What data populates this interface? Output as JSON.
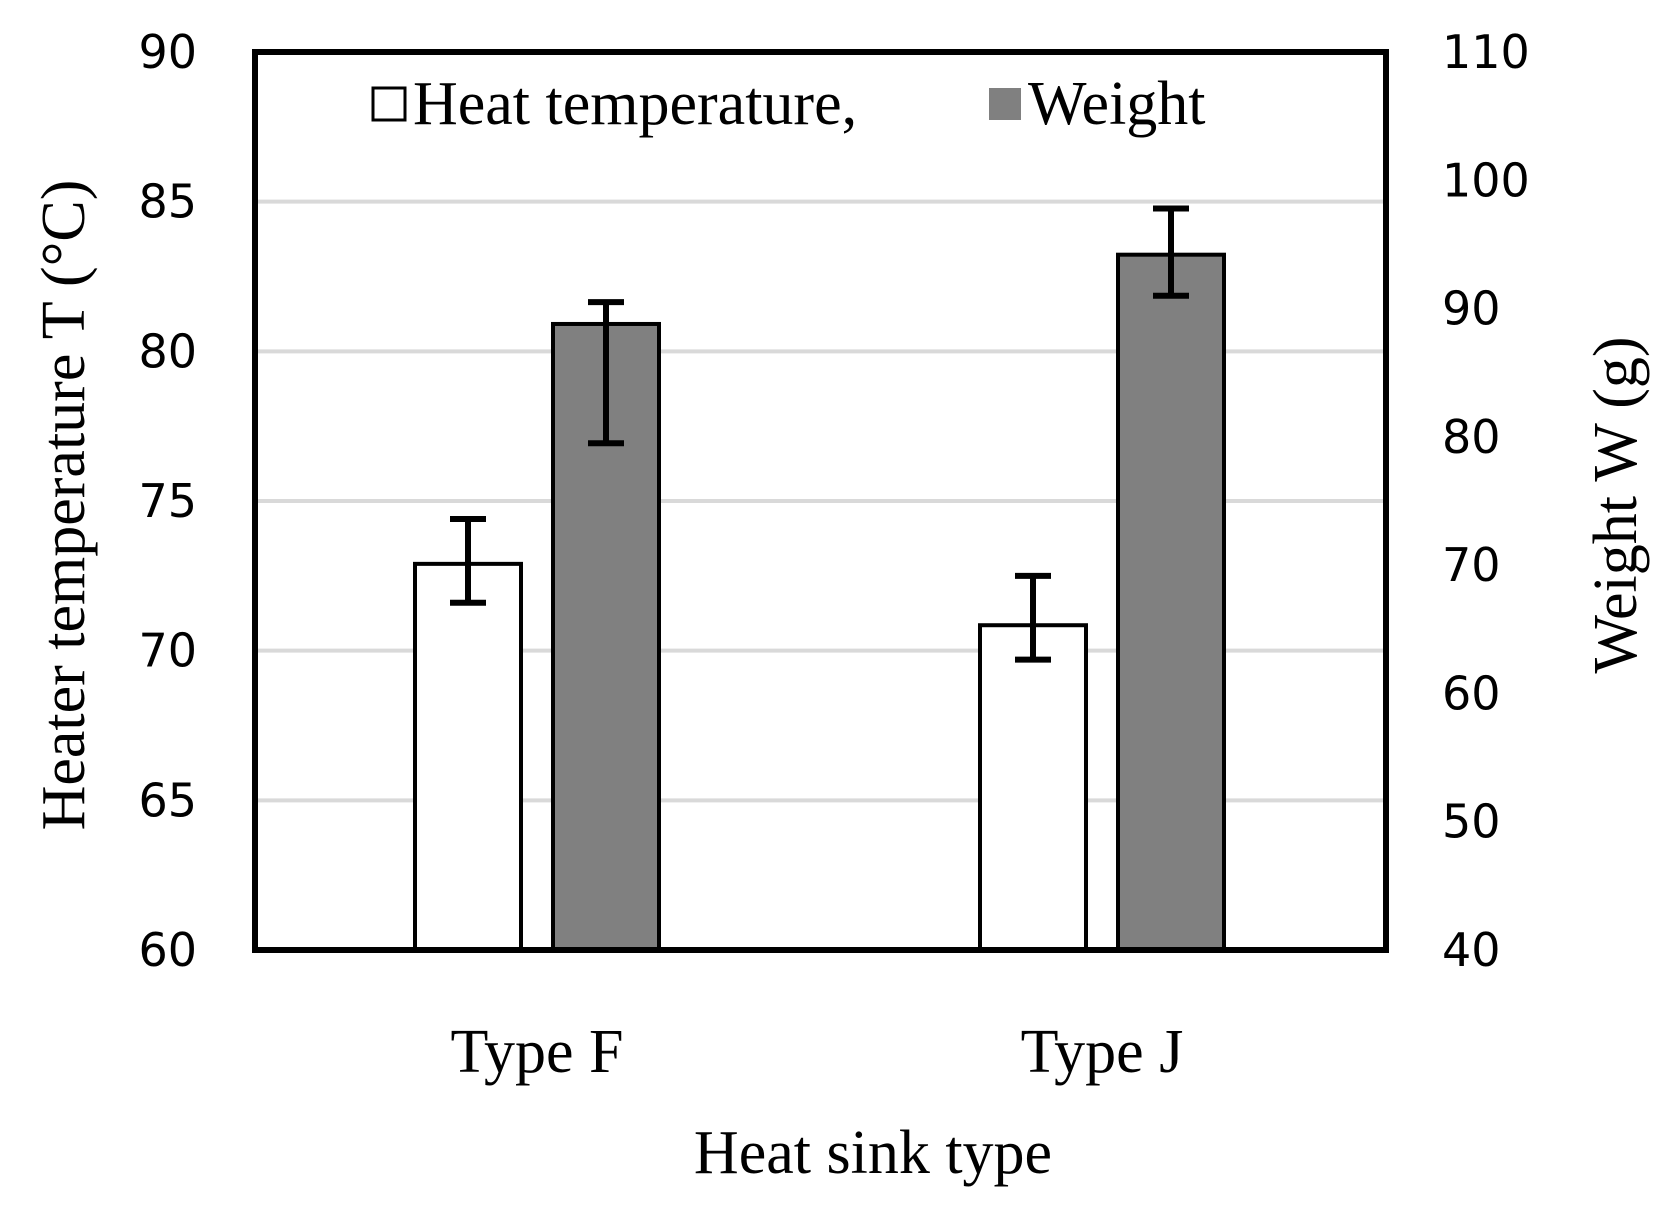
{
  "chart_data": {
    "type": "bar",
    "title": "",
    "categories": [
      "Type F",
      "Type J"
    ],
    "xlabel": "Heat sink type",
    "ylabel_left": "Heater temperature T (°C)",
    "ylabel_right": "Weight W (g)",
    "ylim_left": [
      60,
      90
    ],
    "ylim_right": [
      40,
      110
    ],
    "yticks_left": [
      "60",
      "65",
      "70",
      "75",
      "80",
      "85",
      "90"
    ],
    "yticks_right": [
      "40",
      "50",
      "60",
      "70",
      "80",
      "90",
      "100",
      "110"
    ],
    "grid": true,
    "legend_placement": "top-center",
    "series": [
      {
        "name": "Heat temperature,",
        "axis": "left",
        "color": "#ffffff",
        "values": [
          72.9,
          70.85
        ],
        "error_low": [
          71.6,
          69.7
        ],
        "error_high": [
          74.4,
          72.5
        ]
      },
      {
        "name": "Weight",
        "axis": "right",
        "color": "#808080",
        "values": [
          88.8,
          94.2
        ],
        "error_low": [
          79.5,
          91.0
        ],
        "error_high": [
          90.5,
          97.8
        ]
      }
    ]
  }
}
